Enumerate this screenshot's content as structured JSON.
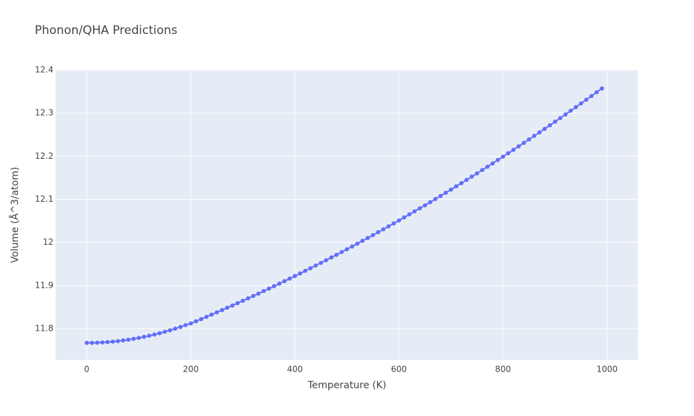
{
  "chart_data": {
    "type": "line",
    "title": "Phonon/QHA Predictions",
    "xlabel": "Temperature (K)",
    "ylabel": "Volume (Å^3/atom)",
    "x": [
      0,
      10,
      20,
      30,
      40,
      50,
      60,
      70,
      80,
      90,
      100,
      110,
      120,
      130,
      140,
      150,
      160,
      170,
      180,
      190,
      200,
      210,
      220,
      230,
      240,
      250,
      260,
      270,
      280,
      290,
      300,
      310,
      320,
      330,
      340,
      350,
      360,
      370,
      380,
      390,
      400,
      410,
      420,
      430,
      440,
      450,
      460,
      470,
      480,
      490,
      500,
      510,
      520,
      530,
      540,
      550,
      560,
      570,
      580,
      590,
      600,
      610,
      620,
      630,
      640,
      650,
      660,
      670,
      680,
      690,
      700,
      710,
      720,
      730,
      740,
      750,
      760,
      770,
      780,
      790,
      800,
      810,
      820,
      830,
      840,
      850,
      860,
      870,
      880,
      890,
      900,
      910,
      920,
      930,
      940,
      950,
      960,
      970,
      980,
      990
    ],
    "series": [
      {
        "color": "#636efa",
        "values": [
          11.767,
          11.7671,
          11.7675,
          11.768,
          11.7688,
          11.7699,
          11.7711,
          11.7726,
          11.7743,
          11.7762,
          11.7784,
          11.7808,
          11.7834,
          11.7863,
          11.7893,
          11.7927,
          11.7962,
          11.8,
          11.8039,
          11.8082,
          11.812,
          11.8171,
          11.8222,
          11.8273,
          11.8325,
          11.8377,
          11.843,
          11.8484,
          11.8537,
          11.8591,
          11.8646,
          11.8702,
          11.8757,
          11.8813,
          11.887,
          11.8927,
          11.8985,
          11.9043,
          11.9102,
          11.9161,
          11.922,
          11.928,
          11.9341,
          11.9402,
          11.9463,
          11.9525,
          11.9587,
          11.965,
          11.9713,
          11.9777,
          11.9841,
          11.9906,
          11.9971,
          12.0037,
          12.0103,
          12.017,
          12.0237,
          12.0304,
          12.0373,
          12.0441,
          12.051,
          12.0579,
          12.065,
          12.072,
          12.0791,
          12.0862,
          12.0934,
          12.1007,
          12.1079,
          12.1152,
          12.1226,
          12.1301,
          12.1375,
          12.145,
          12.1526,
          12.1602,
          12.1679,
          12.1756,
          12.1833,
          12.1912,
          12.199,
          12.2069,
          12.2148,
          12.2229,
          12.2309,
          12.239,
          12.2471,
          12.2553,
          12.2635,
          12.2718,
          12.2801,
          12.2885,
          12.2969,
          12.3054,
          12.3139,
          12.3225,
          12.3311,
          12.3397,
          12.3485,
          12.3572
        ]
      }
    ],
    "xlim": [
      -60,
      1059
    ],
    "xticks": [
      0,
      200,
      400,
      600,
      800,
      1000
    ],
    "ylim": [
      11.7276,
      12.4
    ],
    "yticks": [
      11.8,
      11.9,
      12,
      12.1,
      12.2,
      12.3,
      12.4
    ],
    "grid": true
  }
}
